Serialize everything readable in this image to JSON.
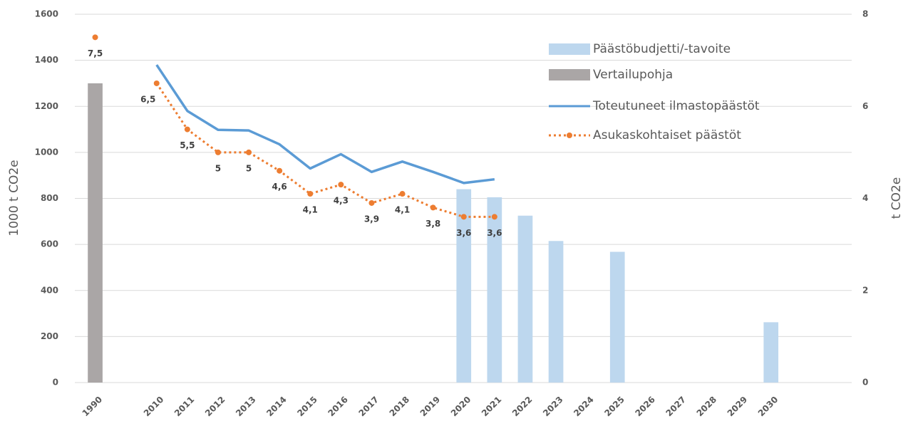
{
  "chart_data": {
    "type": "combo",
    "y_label": "1000 t CO2e",
    "y2_label": "t CO2e",
    "categories": [
      "1990",
      null,
      "2010",
      "2011",
      "2012",
      "2013",
      "2014",
      "2015",
      "2016",
      "2017",
      "2018",
      "2019",
      "2020",
      "2021",
      "2022",
      "2023",
      "2024",
      "2025",
      "2026",
      "2027",
      "2028",
      "2029",
      "2030"
    ],
    "series": [
      {
        "name": "Päästöbudjetti/-tavoite",
        "type": "bar",
        "color": "#bdd7ee",
        "values": [
          null,
          null,
          null,
          null,
          null,
          null,
          null,
          null,
          null,
          null,
          null,
          null,
          840,
          805,
          725,
          615,
          null,
          568,
          null,
          null,
          null,
          null,
          262
        ]
      },
      {
        "name": "Vertailupohja",
        "type": "bar",
        "color": "#aaa6a6",
        "values": [
          1300,
          null,
          null,
          null,
          null,
          null,
          null,
          null,
          null,
          null,
          null,
          null,
          null,
          null,
          null,
          null,
          null,
          null,
          null,
          null,
          null,
          null,
          null
        ]
      },
      {
        "name": "Toteutuneet ilmastopäästöt",
        "type": "line",
        "color": "#5b9bd5",
        "style": "solid",
        "values": [
          null,
          null,
          1380,
          1180,
          1098,
          1095,
          1035,
          930,
          992,
          915,
          960,
          915,
          867,
          883,
          null,
          null,
          null,
          null,
          null,
          null,
          null,
          null,
          null
        ]
      },
      {
        "name": "Asukaskohtaiset päästöt",
        "type": "line",
        "color": "#ed7d31",
        "style": "dotted",
        "axis": "y2",
        "values": [
          7.5,
          null,
          6.5,
          5.5,
          5,
          5,
          4.6,
          4.1,
          4.3,
          3.9,
          4.1,
          3.8,
          3.6,
          3.6,
          null,
          null,
          null,
          null,
          null,
          null,
          null,
          null,
          null
        ],
        "value_labels": [
          "7,5",
          null,
          "6,5",
          "5,5",
          "5",
          "5",
          "4,6",
          "4,1",
          "4,3",
          "3,9",
          "4,1",
          "3,8",
          "3,6",
          "3,6",
          null,
          null,
          null,
          null,
          null,
          null,
          null,
          null,
          null
        ]
      }
    ],
    "ylim": [
      0,
      1600
    ],
    "yticks": [
      0,
      200,
      400,
      600,
      800,
      1000,
      1200,
      1400,
      1600
    ],
    "y2lim": [
      0,
      8
    ],
    "y2ticks": [
      0,
      2,
      4,
      6,
      8
    ],
    "grid": true,
    "legend": "top-right"
  }
}
